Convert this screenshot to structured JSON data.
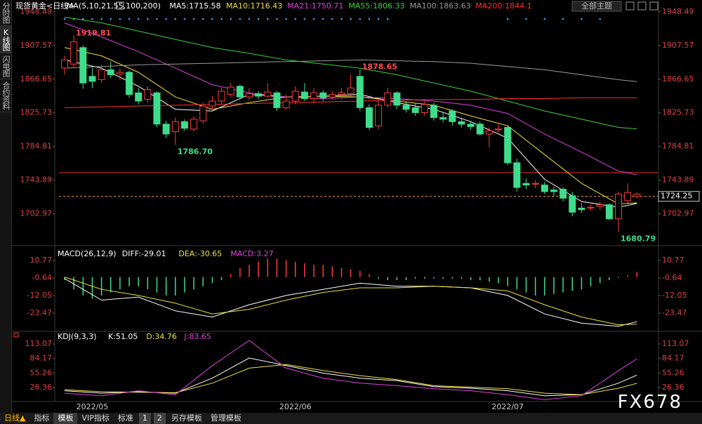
{
  "sidebar": {
    "tabs": [
      "分时图",
      "K线图",
      "闪电图",
      "合约资料"
    ]
  },
  "toolbar": {
    "top_button": "全部主题",
    "period": "日线▲",
    "items": [
      "指标",
      "模板",
      "VIP指标",
      "标准",
      "1",
      "2",
      "另存模板",
      "管理模板"
    ]
  },
  "watermark": "FX678",
  "chart_data": [
    {
      "type": "candlestick",
      "title": "现货黄金<日线>",
      "indicator": "MA(5,10,21,55,100,200)",
      "categories": [
        null,
        null,
        null,
        "2022/05",
        null,
        null,
        null,
        null,
        null,
        null,
        null,
        null,
        null,
        null,
        null,
        null,
        null,
        null,
        null,
        null,
        null,
        null,
        null,
        null,
        null,
        "2022/06",
        null,
        null,
        null,
        null,
        null,
        null,
        null,
        null,
        null,
        null,
        null,
        null,
        null,
        null,
        null,
        null,
        null,
        null,
        null,
        null,
        null,
        null,
        "2022/07",
        null,
        null,
        null,
        null,
        null,
        null,
        null,
        null,
        null,
        null,
        null,
        null,
        null,
        null
      ],
      "open": [
        1880,
        1885,
        1905,
        1870,
        1866,
        1878,
        1873,
        1875,
        1850,
        1842,
        1850,
        1812,
        1803,
        1815,
        1806,
        1816,
        1834,
        1840,
        1848,
        1858,
        1845,
        1849,
        1846,
        1850,
        1832,
        1840,
        1851,
        1843,
        1850,
        1845,
        1848,
        1849,
        1870,
        1832,
        1810,
        1835,
        1850,
        1835,
        1832,
        1826,
        1835,
        1820,
        1828,
        1815,
        1812,
        1812,
        1800,
        1805,
        1808,
        1765,
        1740,
        1739,
        1738,
        1732,
        1733,
        1725,
        1710,
        1710,
        1712,
        1714,
        1697,
        1719,
        1724
      ],
      "high": [
        1895,
        1919.81,
        1908,
        1880,
        1884,
        1888,
        1880,
        1877,
        1856,
        1858,
        1852,
        1816,
        1820,
        1818,
        1822,
        1838,
        1846,
        1856,
        1862,
        1860,
        1856,
        1852,
        1862,
        1852,
        1848,
        1858,
        1862,
        1856,
        1853,
        1852,
        1856,
        1872,
        1878.65,
        1836,
        1840,
        1856,
        1852,
        1840,
        1838,
        1840,
        1838,
        1826,
        1830,
        1820,
        1816,
        1815,
        1808,
        1812,
        1810,
        1770,
        1746,
        1744,
        1742,
        1736,
        1735,
        1730,
        1716,
        1714,
        1718,
        1716,
        1730,
        1740,
        1729
      ],
      "low": [
        1872,
        1880,
        1855,
        1856,
        1862,
        1868,
        1866,
        1844,
        1836,
        1838,
        1808,
        1795,
        1786.7,
        1804,
        1803,
        1812,
        1830,
        1836,
        1845,
        1842,
        1841,
        1842,
        1844,
        1828,
        1830,
        1836,
        1840,
        1838,
        1840,
        1842,
        1843,
        1846,
        1828,
        1805,
        1806,
        1832,
        1830,
        1826,
        1822,
        1822,
        1816,
        1814,
        1810,
        1808,
        1805,
        1798,
        1784,
        1802,
        1762,
        1730,
        1733,
        1734,
        1727,
        1724,
        1718,
        1700,
        1704,
        1707,
        1708,
        1695,
        1680.79,
        1716,
        1722
      ],
      "close": [
        1890,
        1912,
        1862,
        1864,
        1878,
        1872,
        1875,
        1848,
        1840,
        1854,
        1812,
        1800,
        1815,
        1807,
        1818,
        1834,
        1840,
        1852,
        1857,
        1845,
        1849,
        1846,
        1851,
        1832,
        1840,
        1852,
        1843,
        1850,
        1844,
        1848,
        1850,
        1856,
        1832,
        1808,
        1835,
        1850,
        1835,
        1830,
        1826,
        1836,
        1820,
        1818,
        1815,
        1812,
        1809,
        1800,
        1804,
        1806,
        1765,
        1735,
        1738,
        1740,
        1730,
        1730,
        1722,
        1705,
        1708,
        1711,
        1714,
        1697,
        1727,
        1729,
        1727
      ],
      "up_color": "#ff3b3b",
      "down_color": "#3fdc8c",
      "ylim": [
        1666,
        1956
      ],
      "yticks": [
        1948.49,
        1907.57,
        1866.65,
        1825.73,
        1784.81,
        1743.89,
        1702.97
      ],
      "last_price": 1724.25,
      "reference_line": 1753.3,
      "annotations": [
        {
          "label": "1919.81",
          "index": 1,
          "value": 1919.81
        },
        {
          "label": "1878.65",
          "index": 32,
          "value": 1878.65
        },
        {
          "label": "1786.70",
          "index": 12,
          "value": 1786.7
        },
        {
          "label": "1680.79",
          "index": 60,
          "value": 1680.79
        }
      ],
      "series": [
        {
          "name": "MA5:1715.58",
          "color": "#ffffff",
          "x": [
            0,
            4,
            8,
            12,
            16,
            20,
            24,
            28,
            32,
            36,
            40,
            44,
            48,
            52,
            56,
            60,
            62
          ],
          "values": [
            1890,
            1880,
            1858,
            1830,
            1828,
            1848,
            1845,
            1846,
            1848,
            1838,
            1830,
            1815,
            1795,
            1745,
            1718,
            1711,
            1715.58
          ]
        },
        {
          "name": "MA10:1716.43",
          "color": "#f0e040",
          "x": [
            0,
            4,
            8,
            12,
            16,
            20,
            24,
            28,
            32,
            36,
            40,
            44,
            48,
            52,
            56,
            60,
            62
          ],
          "values": [
            1905,
            1895,
            1875,
            1845,
            1830,
            1838,
            1845,
            1846,
            1845,
            1840,
            1835,
            1822,
            1810,
            1775,
            1740,
            1715,
            1716.43
          ]
        },
        {
          "name": "MA21:1750.71",
          "color": "#e040e0",
          "x": [
            0,
            4,
            8,
            12,
            16,
            20,
            24,
            28,
            32,
            36,
            40,
            44,
            48,
            52,
            56,
            60,
            62
          ],
          "values": [
            1935,
            1918,
            1900,
            1880,
            1860,
            1850,
            1845,
            1843,
            1845,
            1843,
            1840,
            1835,
            1825,
            1800,
            1778,
            1755,
            1750.71
          ]
        },
        {
          "name": "MA55:1806.33",
          "color": "#40d040",
          "x": [
            0,
            4,
            8,
            12,
            16,
            20,
            24,
            28,
            32,
            36,
            40,
            44,
            48,
            52,
            56,
            60,
            62
          ],
          "values": [
            1942,
            1935,
            1925,
            1915,
            1905,
            1898,
            1890,
            1885,
            1880,
            1872,
            1862,
            1852,
            1840,
            1828,
            1818,
            1808,
            1806.33
          ]
        },
        {
          "name": "MA100:1863.63",
          "color": "#9a9a9a",
          "x": [
            0,
            4,
            8,
            12,
            16,
            20,
            24,
            28,
            32,
            36,
            40,
            44,
            48,
            52,
            56,
            60,
            62
          ],
          "values": [
            1880,
            1882,
            1884,
            1885,
            1886,
            1887,
            1888,
            1889,
            1890,
            1889,
            1888,
            1886,
            1882,
            1878,
            1872,
            1866,
            1863.63
          ]
        },
        {
          "name": "MA200:1844.1",
          "color": "#ff3030",
          "x": [
            0,
            4,
            8,
            12,
            16,
            20,
            24,
            28,
            32,
            36,
            40,
            44,
            48,
            52,
            56,
            60,
            62
          ],
          "values": [
            1832,
            1833,
            1834,
            1835,
            1836,
            1837,
            1838,
            1839,
            1840,
            1841,
            1842,
            1842,
            1843,
            1843,
            1844,
            1844,
            1844.1
          ]
        }
      ]
    },
    {
      "type": "macd",
      "title": "MACD(26,12,9)",
      "ylim": [
        -34.4,
        18.1
      ],
      "yticks": [
        10.77,
        -0.64,
        -12.05,
        -23.47
      ],
      "histogram": {
        "name": "MACD:3.27",
        "color": "#e040e0",
        "up_color": "#ff3b3b",
        "down_color": "#3fdc8c",
        "values": [
          -2,
          -8,
          -12,
          -14,
          -12,
          -10,
          -8,
          -6,
          -6,
          -8,
          -10,
          -12,
          -12,
          -10,
          -8,
          -6,
          -4,
          -2,
          2,
          6,
          8,
          10,
          12,
          12,
          11,
          10,
          9,
          8,
          8,
          7,
          6,
          5,
          4,
          2,
          -1,
          -2,
          -2,
          -2,
          -1,
          -1,
          -1,
          -1,
          -1,
          -1,
          -2,
          -2,
          -3,
          -4,
          -6,
          -8,
          -10,
          -12,
          -12,
          -11,
          -10,
          -9,
          -8,
          -6,
          -4,
          -2,
          -0.5,
          1,
          3.27
        ]
      },
      "series": [
        {
          "name": "DIFF:-29.01",
          "color": "#ffffff",
          "x": [
            0,
            4,
            8,
            12,
            16,
            20,
            24,
            28,
            32,
            36,
            40,
            44,
            48,
            52,
            56,
            60,
            62
          ],
          "values": [
            -1,
            -15,
            -13,
            -22,
            -26,
            -18,
            -12,
            -8,
            -4,
            -6,
            -6,
            -7,
            -12,
            -24,
            -30,
            -32,
            -29.01
          ]
        },
        {
          "name": "DEA:-30.65",
          "color": "#f0e040",
          "x": [
            0,
            4,
            8,
            12,
            16,
            20,
            24,
            28,
            32,
            36,
            40,
            44,
            48,
            52,
            56,
            60,
            62
          ],
          "values": [
            0,
            -8,
            -12,
            -17,
            -24,
            -21,
            -15,
            -10,
            -7,
            -7,
            -6,
            -7,
            -9,
            -18,
            -26,
            -31,
            -30.65
          ]
        }
      ]
    },
    {
      "type": "line",
      "title": "KDJ(9,3,3)",
      "ylim": [
        1.2,
        129.8
      ],
      "yticks": [
        113.07,
        84.17,
        55.26,
        26.36
      ],
      "series": [
        {
          "name": "K:51.05",
          "color": "#ffffff",
          "x": [
            0,
            4,
            8,
            12,
            16,
            20,
            24,
            28,
            32,
            36,
            40,
            44,
            48,
            52,
            56,
            60,
            62
          ],
          "values": [
            20,
            15,
            18,
            15,
            45,
            85,
            70,
            55,
            45,
            40,
            28,
            25,
            20,
            10,
            12,
            35,
            51.05
          ]
        },
        {
          "name": "D:34.76",
          "color": "#f0e040",
          "x": [
            0,
            4,
            8,
            12,
            16,
            20,
            24,
            28,
            32,
            36,
            40,
            44,
            48,
            52,
            56,
            60,
            62
          ],
          "values": [
            22,
            18,
            17,
            16,
            35,
            65,
            72,
            60,
            50,
            42,
            30,
            27,
            24,
            15,
            12,
            25,
            34.76
          ]
        },
        {
          "name": "J:83.65",
          "color": "#e040e0",
          "x": [
            0,
            4,
            8,
            12,
            16,
            20,
            24,
            28,
            32,
            36,
            40,
            44,
            48,
            52,
            56,
            60,
            62
          ],
          "values": [
            15,
            10,
            20,
            12,
            70,
            120,
            65,
            45,
            35,
            30,
            24,
            20,
            12,
            2,
            10,
            60,
            83.65
          ]
        }
      ]
    }
  ]
}
